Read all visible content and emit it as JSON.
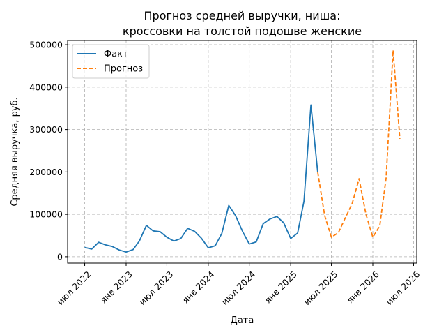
{
  "chart_data": {
    "type": "line",
    "title_line1": "Прогноз средней выручки, ниша:",
    "title_line2": "кроссовки на толстой подошве женские",
    "xlabel": "Дата",
    "ylabel": "Средняя выручка, руб.",
    "ylim": [
      -15000,
      510000
    ],
    "y_ticks": [
      0,
      100000,
      200000,
      300000,
      400000,
      500000
    ],
    "y_tick_labels": [
      "0",
      "100000",
      "200000",
      "300000",
      "400000",
      "500000"
    ],
    "x_ticks": [
      "2022-07",
      "2023-01",
      "2023-07",
      "2024-01",
      "2024-07",
      "2025-01",
      "2025-07",
      "2026-01",
      "2026-07"
    ],
    "x_tick_labels": [
      "июл 2022",
      "янв 2023",
      "июл 2023",
      "янв 2024",
      "июл 2024",
      "янв 2025",
      "июл 2025",
      "янв 2026",
      "июл 2026"
    ],
    "xlim": [
      "2022-04-16",
      "2026-07-15"
    ],
    "grid": true,
    "legend_position": "top-left",
    "series": [
      {
        "name": "Факт",
        "color": "#1f77b4",
        "style": "solid",
        "x": [
          "2022-07",
          "2022-08",
          "2022-09",
          "2022-10",
          "2022-11",
          "2022-12",
          "2023-01",
          "2023-02",
          "2023-03",
          "2023-04",
          "2023-05",
          "2023-06",
          "2023-07",
          "2023-08",
          "2023-09",
          "2023-10",
          "2023-11",
          "2023-12",
          "2024-01",
          "2024-02",
          "2024-03",
          "2024-04",
          "2024-05",
          "2024-06",
          "2024-07",
          "2024-08",
          "2024-09",
          "2024-10",
          "2024-11",
          "2024-12",
          "2025-01",
          "2025-02",
          "2025-03",
          "2025-04",
          "2025-05"
        ],
        "y": [
          22000,
          18000,
          34000,
          28000,
          24000,
          16000,
          11000,
          17000,
          37000,
          74000,
          61000,
          59000,
          46000,
          37000,
          43000,
          67000,
          60000,
          44000,
          21000,
          26000,
          55000,
          121000,
          97000,
          60000,
          30000,
          35000,
          78000,
          89000,
          95000,
          80000,
          43000,
          56000,
          131000,
          358000,
          200000
        ]
      },
      {
        "name": "Прогноз",
        "color": "#ff7f0e",
        "style": "dashed",
        "x": [
          "2025-05",
          "2025-06",
          "2025-07",
          "2025-08",
          "2025-09",
          "2025-10",
          "2025-11",
          "2025-12",
          "2026-01",
          "2026-02",
          "2026-03",
          "2026-04",
          "2026-05"
        ],
        "y": [
          200000,
          97000,
          46000,
          57000,
          92000,
          125000,
          184000,
          101000,
          46000,
          73000,
          186000,
          487000,
          278000
        ]
      }
    ]
  }
}
